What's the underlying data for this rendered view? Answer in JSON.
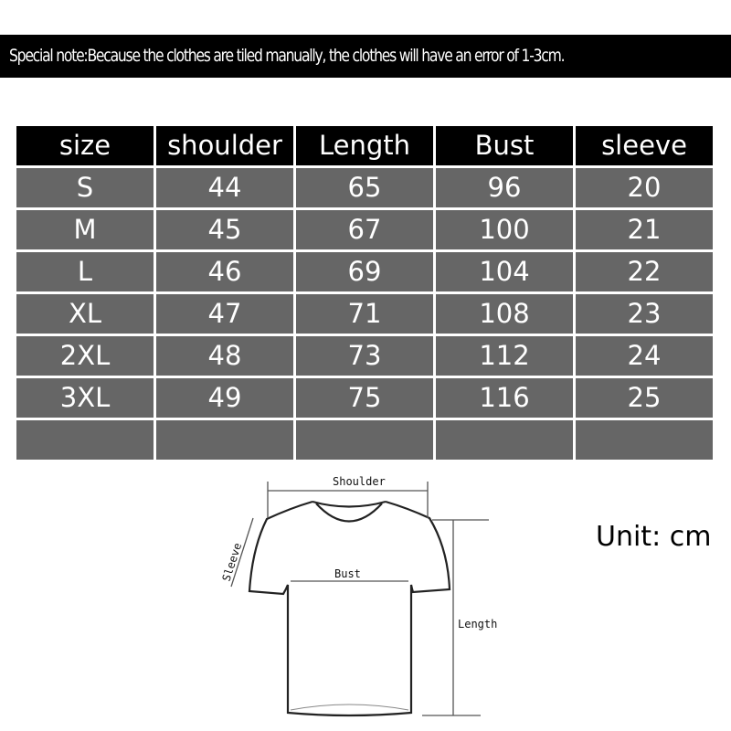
{
  "note": "Special note:Because the clothes are tiled manually, the clothes will have an error of 1-3cm.",
  "table": {
    "headers": [
      "size",
      "shoulder",
      "Length",
      "Bust",
      "sleeve"
    ],
    "rows": [
      [
        "S",
        "44",
        "65",
        "96",
        "20"
      ],
      [
        "M",
        "45",
        "67",
        "100",
        "21"
      ],
      [
        "L",
        "46",
        "69",
        "104",
        "22"
      ],
      [
        "XL",
        "47",
        "71",
        "108",
        "23"
      ],
      [
        "2XL",
        "48",
        "73",
        "112",
        "24"
      ],
      [
        "3XL",
        "49",
        "75",
        "116",
        "25"
      ],
      [
        "",
        "",
        "",
        "",
        ""
      ]
    ]
  },
  "diagram": {
    "shoulder_label": "Shoulder",
    "bust_label": "Bust",
    "length_label": "Length",
    "sleeve_label": "Sleeve"
  },
  "unit": "Unit: cm",
  "colors": {
    "header_bg": "#000000",
    "cell_bg": "#666666",
    "text": "#ffffff"
  }
}
